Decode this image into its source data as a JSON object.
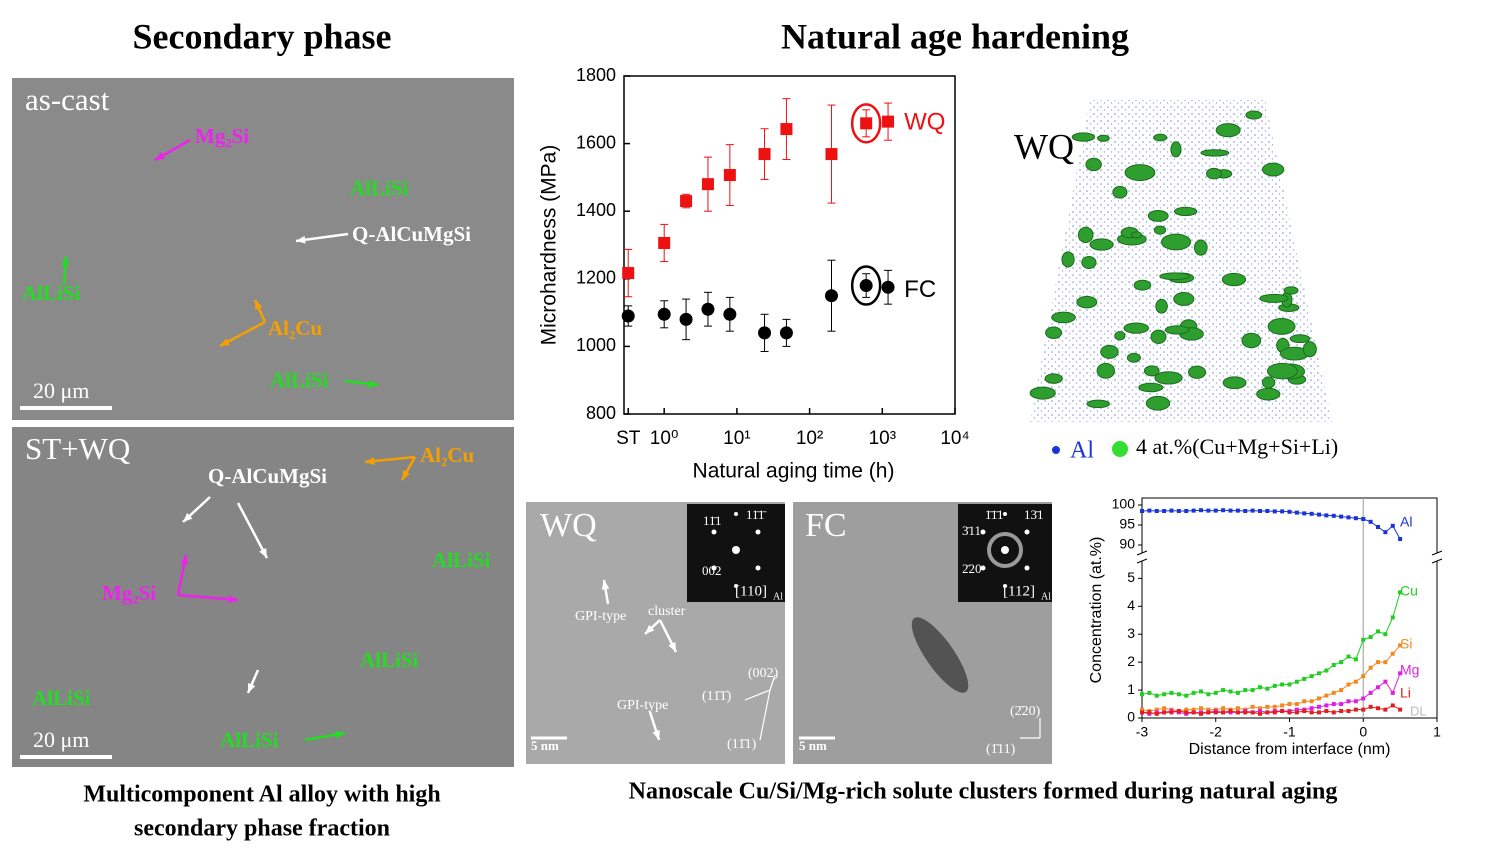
{
  "headings": {
    "left": "Secondary phase",
    "right": "Natural age hardening"
  },
  "sem": [
    {
      "label": "as-cast",
      "scale": "20 μm",
      "phases": [
        "Mg₂Si",
        "AlLiSi",
        "Q-AlCuMgSi",
        "AlLiSi",
        "Al₂Cu",
        "AlLiSi"
      ]
    },
    {
      "label": "ST+WQ",
      "scale": "20 μm",
      "phases": [
        "Al₂Cu",
        "Q-AlCuMgSi",
        "AlLiSi",
        "Mg₂Si",
        "AlLiSi",
        "AlLiSi",
        "AlLiSi"
      ]
    }
  ],
  "captions": {
    "left": [
      "Multicomponent Al alloy with high",
      "secondary phase fraction"
    ],
    "right": "Nanoscale Cu/Si/Mg-rich solute clusters formed during natural aging"
  },
  "apt": {
    "label": "WQ",
    "legend": [
      "Al",
      "4 at.%(Cu+Mg+Si+Li)"
    ]
  },
  "tem": [
    {
      "label": "WQ",
      "scale": "5 nm",
      "zone": "[110]",
      "zone_sub": "Al",
      "spots": [
        "11̄1",
        "11̄1̄",
        "002"
      ],
      "notes": [
        "GPI-type",
        "cluster",
        "GPI-type",
        "(002)",
        "(11̄1̄)",
        "(11̄1)"
      ]
    },
    {
      "label": "FC",
      "scale": "5 nm",
      "zone": "[112]",
      "zone_sub": "Al",
      "spots": [
        "1̄1̄1",
        "13̄1",
        "3̄11",
        "2̄20"
      ],
      "notes": [
        "(2̄20)",
        "(1̄11)"
      ]
    }
  ],
  "chart_data": [
    {
      "type": "scatter",
      "xlabel": "Natural aging time (h)",
      "ylabel": "Microhardness (MPa)",
      "log_x": true,
      "x": [
        0.32,
        1,
        2,
        4,
        8,
        24,
        48,
        200,
        600,
        1200
      ],
      "xlim": [
        0.28,
        10000
      ],
      "ylim": [
        800,
        1800
      ],
      "xticks": [
        {
          "value": 0.32,
          "label": "ST"
        },
        {
          "value": 1,
          "label": "10⁰"
        },
        {
          "value": 10,
          "label": "10¹"
        },
        {
          "value": 100,
          "label": "10²"
        },
        {
          "value": 1000,
          "label": "10³"
        },
        {
          "value": 10000,
          "label": "10⁴"
        }
      ],
      "yticks": [
        800,
        1000,
        1200,
        1400,
        1600,
        1800
      ],
      "series": [
        {
          "name": "WQ",
          "color": "#ee1111",
          "marker": "square",
          "values": [
            1217,
            1306,
            1430,
            1480,
            1507,
            1569,
            1643,
            1569,
            1660,
            1665
          ],
          "errors": [
            70,
            55,
            20,
            80,
            90,
            75,
            90,
            145,
            40,
            55
          ]
        },
        {
          "name": "FC",
          "color": "#000000",
          "marker": "circle",
          "values": [
            1090,
            1095,
            1080,
            1110,
            1095,
            1040,
            1040,
            1150,
            1180,
            1175
          ],
          "errors": [
            30,
            40,
            60,
            50,
            50,
            55,
            40,
            105,
            35,
            50
          ]
        }
      ]
    },
    {
      "type": "line",
      "xlabel": "Distance from interface (nm)",
      "ylabel": "Concentration (at.%)",
      "detection_label": "DL",
      "x": [
        -3.0,
        -2.9,
        -2.8,
        -2.7,
        -2.6,
        -2.5,
        -2.4,
        -2.3,
        -2.2,
        -2.1,
        -2.0,
        -1.9,
        -1.8,
        -1.7,
        -1.6,
        -1.5,
        -1.4,
        -1.3,
        -1.2,
        -1.1,
        -1.0,
        -0.9,
        -0.8,
        -0.7,
        -0.6,
        -0.5,
        -0.4,
        -0.3,
        -0.2,
        -0.1,
        0.0,
        0.1,
        0.2,
        0.3,
        0.4,
        0.5
      ],
      "xlim": [
        -3,
        1
      ],
      "xticks": [
        -3,
        -2,
        -1,
        0,
        1
      ],
      "ylim": [
        0,
        5.3
      ],
      "yticks": [
        0,
        1,
        2,
        3,
        4,
        5
      ],
      "y2lim": [
        88.5,
        100.5
      ],
      "y2ticks": [
        90,
        95,
        100
      ],
      "series": [
        {
          "name": "Al",
          "color": "#1a33d6",
          "axis": "y2",
          "values": [
            98.5,
            98.6,
            98.5,
            98.5,
            98.6,
            98.5,
            98.5,
            98.6,
            98.7,
            98.6,
            98.6,
            98.7,
            98.6,
            98.6,
            98.5,
            98.6,
            98.5,
            98.5,
            98.4,
            98.4,
            98.3,
            98.1,
            97.9,
            97.8,
            97.6,
            97.4,
            97.3,
            97.1,
            96.9,
            96.7,
            96.5,
            95.8,
            94.5,
            93.2,
            94.8,
            91.5
          ]
        },
        {
          "name": "Cu",
          "color": "#22cc22",
          "values": [
            0.85,
            0.9,
            0.8,
            0.85,
            0.9,
            0.85,
            0.8,
            0.9,
            0.95,
            0.85,
            0.9,
            1.0,
            0.95,
            0.9,
            1.0,
            1.0,
            1.1,
            1.05,
            1.15,
            1.2,
            1.2,
            1.3,
            1.4,
            1.5,
            1.6,
            1.7,
            1.9,
            2.0,
            2.2,
            2.1,
            2.8,
            2.9,
            3.1,
            3.0,
            3.6,
            4.5
          ]
        },
        {
          "name": "Si",
          "color": "#f08a20",
          "values": [
            0.3,
            0.25,
            0.3,
            0.35,
            0.3,
            0.25,
            0.3,
            0.3,
            0.35,
            0.3,
            0.3,
            0.35,
            0.3,
            0.35,
            0.3,
            0.4,
            0.35,
            0.4,
            0.4,
            0.45,
            0.5,
            0.5,
            0.6,
            0.6,
            0.7,
            0.8,
            0.9,
            1.0,
            1.2,
            1.3,
            1.5,
            1.8,
            2.0,
            2.0,
            2.3,
            2.6
          ]
        },
        {
          "name": "Mg",
          "color": "#e020e0",
          "values": [
            0.2,
            0.15,
            0.2,
            0.2,
            0.25,
            0.2,
            0.15,
            0.2,
            0.2,
            0.2,
            0.25,
            0.2,
            0.2,
            0.2,
            0.25,
            0.2,
            0.25,
            0.2,
            0.25,
            0.25,
            0.25,
            0.3,
            0.3,
            0.35,
            0.4,
            0.45,
            0.5,
            0.5,
            0.6,
            0.6,
            0.7,
            0.9,
            1.1,
            1.3,
            0.9,
            1.6
          ]
        },
        {
          "name": "Li",
          "color": "#e02020",
          "values": [
            0.2,
            0.2,
            0.15,
            0.2,
            0.2,
            0.25,
            0.2,
            0.2,
            0.15,
            0.2,
            0.2,
            0.2,
            0.25,
            0.2,
            0.2,
            0.2,
            0.15,
            0.2,
            0.2,
            0.25,
            0.2,
            0.2,
            0.25,
            0.2,
            0.2,
            0.25,
            0.2,
            0.25,
            0.25,
            0.3,
            0.3,
            0.4,
            0.35,
            0.3,
            0.45,
            0.3
          ]
        }
      ]
    }
  ]
}
